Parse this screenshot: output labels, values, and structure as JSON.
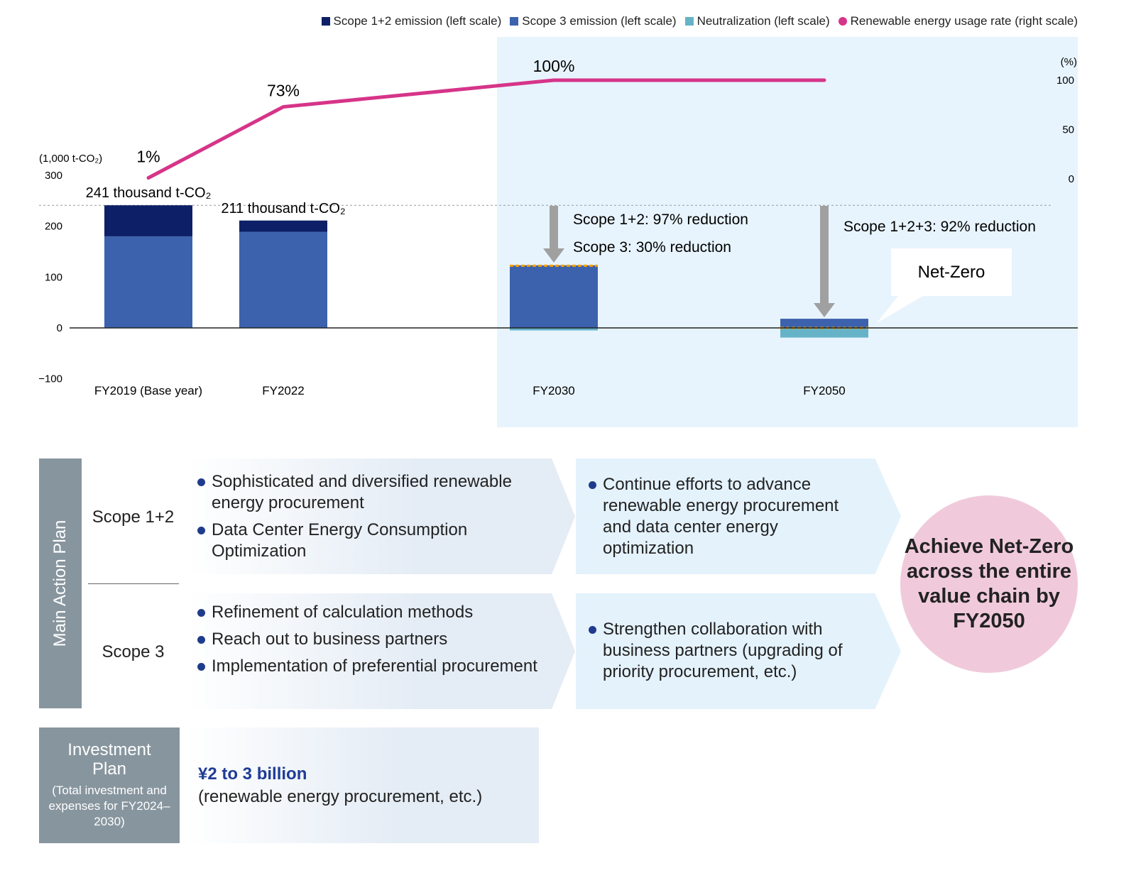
{
  "chart_data": {
    "type": "bar+line",
    "categories": [
      "FY2019 (Base year)",
      "FY2022",
      "FY2030",
      "FY2050"
    ],
    "series": [
      {
        "name": "Scope 1+2 emission (left scale)",
        "color": "#0d1f66",
        "values": [
          61,
          22,
          2,
          1
        ]
      },
      {
        "name": "Scope 3 emission (left scale)",
        "color": "#3c62ad",
        "values": [
          180,
          189,
          123,
          18
        ]
      },
      {
        "name": "Neutralization (left scale)",
        "color": "#66b3c8",
        "values": [
          0,
          0,
          -5,
          -19
        ]
      },
      {
        "name": "Renewable energy usage rate (right scale)",
        "color": "#d63489",
        "values": [
          1,
          73,
          100,
          100
        ]
      }
    ],
    "line_labels": [
      "1%",
      "73%",
      "100%",
      ""
    ],
    "total_labels": [
      "241 thousand t-CO₂",
      "211 thousand t-CO₂"
    ],
    "ylabel": "(1,000 t-CO₂)",
    "y_ticks": [
      "300",
      "200",
      "100",
      "0",
      "−100"
    ],
    "ylim": [
      -100,
      300
    ],
    "y2label": "(%)",
    "y2_ticks": [
      "100",
      "50",
      "0"
    ],
    "y2lim": [
      0,
      100
    ],
    "annotations": [
      "Scope 1+2: 97% reduction",
      "Scope 3: 30% reduction",
      "Scope 1+2+3: 92% reduction",
      "Net-Zero"
    ],
    "legend_position": "top-right"
  },
  "plan": {
    "side_label": "Main Action Plan",
    "scope12": "Scope 1+2",
    "scope3": "Scope 3",
    "s12_now": [
      "Sophisticated and diversified renewable energy procurement",
      "Data Center Energy Consumption Optimization"
    ],
    "s12_next": [
      "Continue efforts to advance renewable energy procurement and data center energy optimization"
    ],
    "s3_now": [
      "Refinement of calculation methods",
      "Reach out to business partners",
      "Implementation of preferential procurement"
    ],
    "s3_next": [
      "Strengthen collaboration with business partners (upgrading of priority procurement, etc.)"
    ],
    "goal": "Achieve Net-Zero across the entire value chain by FY2050"
  },
  "invest": {
    "title": "Investment Plan",
    "sub": "(Total investment and expenses for FY2024–2030)",
    "amount": "¥2 to 3 billion",
    "detail": "(renewable energy procurement, etc.)"
  }
}
